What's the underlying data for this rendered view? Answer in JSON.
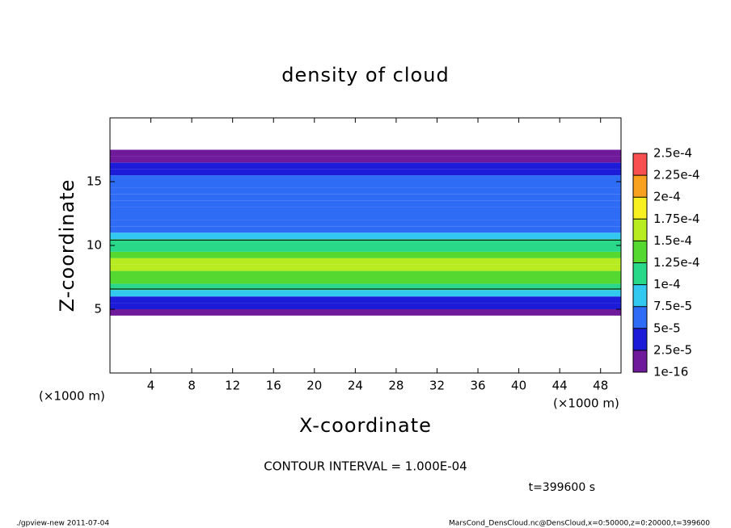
{
  "chart_data": {
    "type": "shaded-profile",
    "title": "density of cloud",
    "x_label": "X-coordinate",
    "y_label": "Z-coordinate",
    "x_unit": "(×1000 m)",
    "y_unit": "(×1000 m)",
    "contour_note": "CONTOUR INTERVAL = 1.000E-04",
    "contour_level": 0.0001,
    "time_note": "t=399600 s",
    "footer_left": "./gpview-new  2011-07-04",
    "footer_right": "MarsCond_DensCloud.nc@DensCloud,x=0:50000,z=0:20000,t=399600",
    "xlim": [
      0,
      50
    ],
    "xticks": [
      4,
      8,
      12,
      16,
      20,
      24,
      28,
      32,
      36,
      40,
      44,
      48
    ],
    "ylim": [
      0,
      20
    ],
    "yticks": [
      5,
      10,
      15
    ],
    "profile": {
      "z": [
        4.75,
        5.25,
        5.75,
        6.25,
        6.75,
        7.25,
        7.75,
        8.25,
        8.75,
        9.25,
        9.75,
        10.25,
        10.75,
        11.25,
        11.75,
        12.25,
        12.75,
        13.25,
        13.75,
        14.25,
        14.75,
        15.25,
        15.75,
        16.25,
        16.75,
        17.25
      ],
      "values": [
        1e-05,
        3e-05,
        4e-05,
        8e-05,
        0.00011,
        0.00013,
        0.000145,
        0.00016,
        0.000155,
        0.00014,
        0.00012,
        0.000105,
        9e-05,
        7e-05,
        6.5e-05,
        6e-05,
        5.5e-05,
        5.5e-05,
        5.5e-05,
        5.5e-05,
        6e-05,
        5.5e-05,
        4e-05,
        3e-05,
        1e-05,
        1e-05
      ]
    },
    "colorbar": {
      "levels": [
        {
          "value": 1e-16,
          "label": "1e-16"
        },
        {
          "value": 2.5e-05,
          "label": "2.5e-5"
        },
        {
          "value": 5e-05,
          "label": "5e-5"
        },
        {
          "value": 7.5e-05,
          "label": "7.5e-5"
        },
        {
          "value": 0.0001,
          "label": "1e-4"
        },
        {
          "value": 0.000125,
          "label": "1.25e-4"
        },
        {
          "value": 0.00015,
          "label": "1.5e-4"
        },
        {
          "value": 0.000175,
          "label": "1.75e-4"
        },
        {
          "value": 0.0002,
          "label": "2e-4"
        },
        {
          "value": 0.000225,
          "label": "2.25e-4"
        },
        {
          "value": 0.00025,
          "label": "2.5e-4"
        }
      ],
      "colors": [
        "#6e1a9a",
        "#1c1cd8",
        "#2f6cf5",
        "#33c8f0",
        "#2ad88a",
        "#55d830",
        "#b8ec20",
        "#f8f020",
        "#f8a020",
        "#f85050"
      ]
    }
  }
}
